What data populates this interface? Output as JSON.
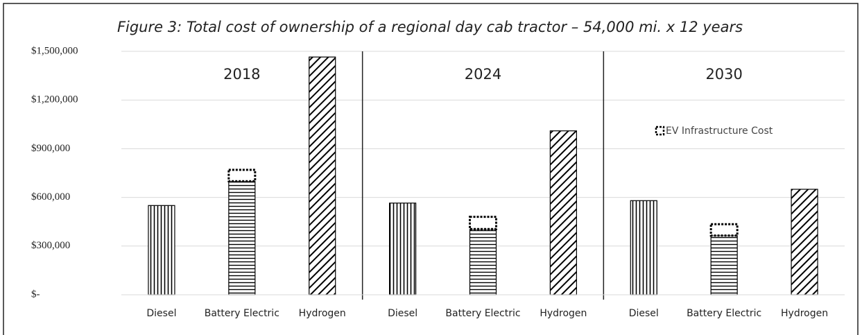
{
  "chart_data": {
    "type": "bar",
    "title": "Figure 3: Total cost of ownership of a regional day cab tractor – 54,000 mi. x 12 years",
    "groups": [
      "2018",
      "2024",
      "2030"
    ],
    "categories": [
      "Diesel",
      "Battery Electric",
      "Hydrogen",
      "Diesel",
      "Battery Electric",
      "Hydrogen",
      "Diesel",
      "Battery Electric",
      "Hydrogen"
    ],
    "patterns": [
      "vertical",
      "horizontal",
      "diagonal",
      "vertical",
      "horizontal",
      "diagonal",
      "vertical",
      "horizontal",
      "diagonal"
    ],
    "series": [
      {
        "color": "#000000",
        "values": [
          550000,
          700000,
          1465000,
          565000,
          405000,
          1010000,
          580000,
          365000,
          650000
        ]
      },
      {
        "name": "EV Infrastructure Cost",
        "color": "#000000",
        "style": "dotted",
        "values": [
          null,
          70000,
          null,
          null,
          75000,
          null,
          null,
          70000,
          null
        ]
      }
    ],
    "ylim": [
      0,
      1500000
    ],
    "yticks": [
      {
        "value": 0,
        "label": "$-"
      },
      {
        "value": 300000,
        "label": "$300,000"
      },
      {
        "value": 600000,
        "label": "$600,000"
      },
      {
        "value": 900000,
        "label": "$900,000"
      },
      {
        "value": 1200000,
        "label": "$1,200,000"
      },
      {
        "value": 1500000,
        "label": "$1,500,000"
      }
    ],
    "grid": true
  }
}
